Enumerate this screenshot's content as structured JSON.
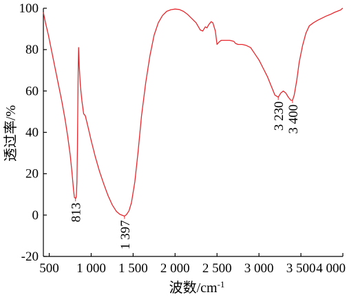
{
  "chart_data": {
    "type": "line",
    "title": "",
    "xlabel": "波数/cm",
    "xlabel_superscript": "-1",
    "ylabel": "透过率/%",
    "xlim": [
      430,
      4000
    ],
    "ylim": [
      -20,
      100
    ],
    "x_ticks": [
      {
        "value": 500,
        "label": "500"
      },
      {
        "value": 1000,
        "label": "1 000"
      },
      {
        "value": 1500,
        "label": "1 500"
      },
      {
        "value": 2000,
        "label": "2 000"
      },
      {
        "value": 2500,
        "label": "2 500"
      },
      {
        "value": 3000,
        "label": "3 000"
      },
      {
        "value": 3500,
        "label": "3 500"
      },
      {
        "value": 4000,
        "label": "4 000"
      }
    ],
    "y_ticks": [
      {
        "value": -20,
        "label": "-20"
      },
      {
        "value": 0,
        "label": "0"
      },
      {
        "value": 20,
        "label": "20"
      },
      {
        "value": 40,
        "label": "40"
      },
      {
        "value": 60,
        "label": "60"
      },
      {
        "value": 80,
        "label": "80"
      },
      {
        "value": 100,
        "label": "100"
      }
    ],
    "series": [
      {
        "color": "#e8262b",
        "x": [
          430,
          455,
          490,
          530,
          570,
          610,
          650,
          690,
          720,
          750,
          770,
          790,
          800,
          808,
          813,
          818,
          823,
          830,
          836,
          842,
          846,
          850,
          858,
          870,
          890,
          910,
          930,
          960,
          1000,
          1050,
          1100,
          1150,
          1200,
          1250,
          1300,
          1340,
          1370,
          1397,
          1420,
          1450,
          1480,
          1520,
          1560,
          1600,
          1650,
          1700,
          1750,
          1800,
          1850,
          1900,
          1950,
          2000,
          2050,
          2100,
          2150,
          2200,
          2250,
          2300,
          2330,
          2360,
          2380,
          2400,
          2430,
          2450,
          2480,
          2500,
          2520,
          2550,
          2600,
          2650,
          2700,
          2720,
          2750,
          2800,
          2850,
          2900,
          2950,
          3000,
          3050,
          3100,
          3150,
          3190,
          3230,
          3260,
          3290,
          3320,
          3350,
          3380,
          3400,
          3420,
          3450,
          3480,
          3520,
          3560,
          3600,
          3650,
          3700,
          3750,
          3800,
          3850,
          3900,
          3950,
          3975,
          3990,
          4000
        ],
        "y": [
          98,
          93,
          87,
          79,
          71,
          63,
          55,
          46,
          38,
          29,
          21,
          12,
          8.5,
          8.3,
          8,
          8.3,
          9,
          16,
          32,
          58,
          73,
          81,
          72,
          63,
          55,
          49,
          48,
          43,
          36,
          28,
          21,
          15,
          9.5,
          5,
          1.8,
          0.4,
          -0.1,
          -0.5,
          0.2,
          2,
          6,
          16,
          31,
          48,
          64,
          77,
          87,
          93,
          96.5,
          98.5,
          99.3,
          99.6,
          99.4,
          98.5,
          97,
          95,
          93,
          89.5,
          89,
          91,
          90.5,
          92,
          93.5,
          93,
          89,
          82.5,
          83.5,
          84.5,
          84.5,
          84.5,
          84,
          83,
          82.5,
          82.5,
          82,
          81,
          78,
          75,
          71,
          67,
          62,
          58,
          57,
          59,
          60,
          59,
          57,
          55.5,
          55.5,
          58,
          65,
          74,
          82,
          88,
          91.5,
          93,
          94.2,
          95.2,
          96.2,
          97,
          98,
          98.8,
          99.2,
          99.8,
          100
        ]
      }
    ],
    "annotations": [
      {
        "label": "813",
        "x": 813,
        "y": 8
      },
      {
        "label": "1 397",
        "x": 1397,
        "y": -0.5
      },
      {
        "label": "3 230",
        "x": 3230,
        "y": 57
      },
      {
        "label": "3 400",
        "x": 3400,
        "y": 55.5
      }
    ],
    "grid": false,
    "legend": "none"
  }
}
